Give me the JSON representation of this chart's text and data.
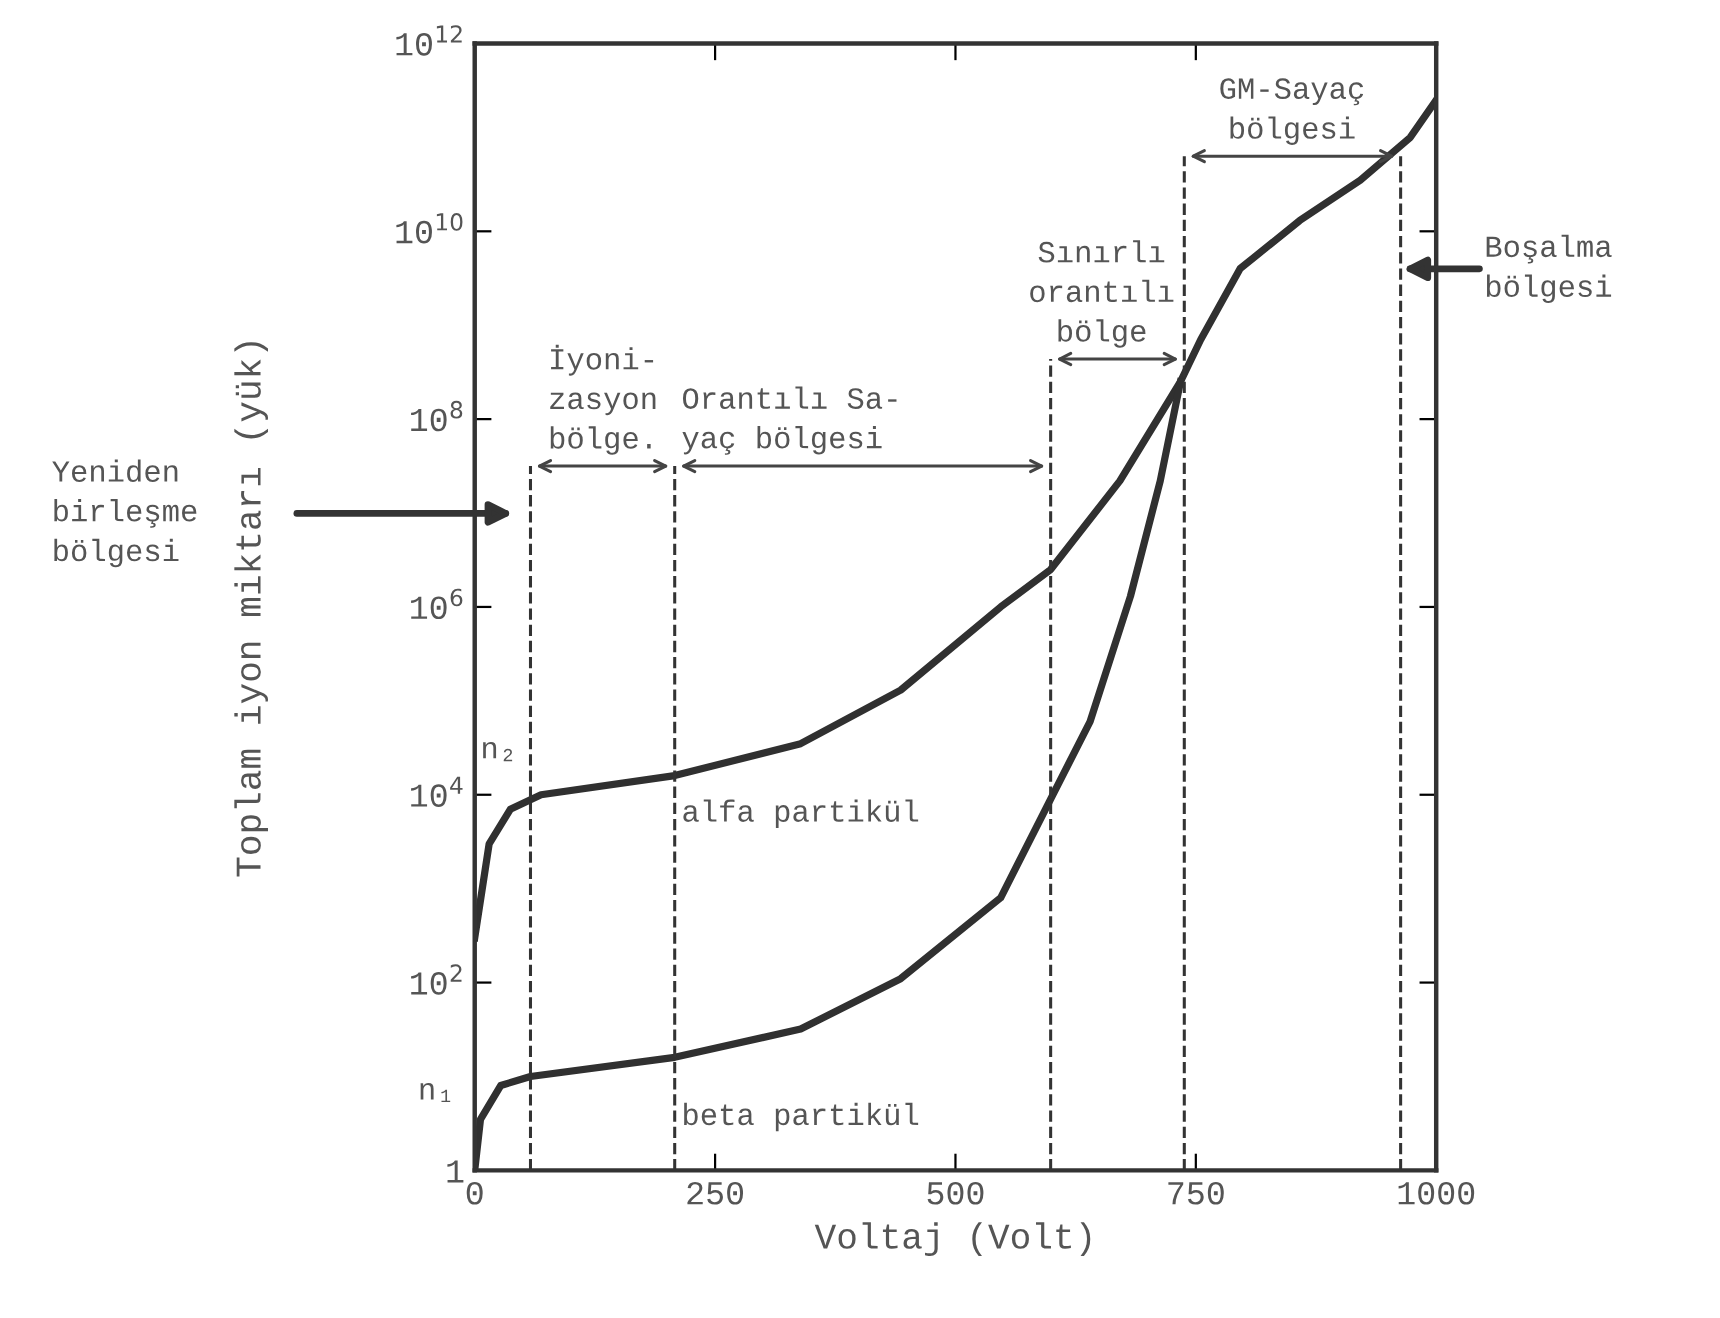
{
  "chart_data": {
    "type": "line",
    "xlabel": "Voltaj (Volt)",
    "ylabel": "Toplam iyon miktarı (yük)",
    "log": "y",
    "xlim": [
      0,
      1000
    ],
    "xticks": [
      0,
      250,
      500,
      750,
      1000
    ],
    "ylim": [
      1,
      1000000000000.0
    ],
    "yticks": [
      {
        "value": 1,
        "label": "1"
      },
      {
        "value": 100,
        "label": "10$^{2}$"
      },
      {
        "value": 10000,
        "label": "10$^{4}$"
      },
      {
        "value": 1000000,
        "label": "10$^{6}$"
      },
      {
        "value": 100000000,
        "label": "10$^{8}$"
      },
      {
        "value": 10000000000,
        "label": "10$^{10}$"
      },
      {
        "value": 1000000000000,
        "label": "10$^{12}$"
      }
    ],
    "grid": false,
    "marker": "none",
    "line_style": "solid",
    "series": [
      {
        "name": "alfa partikül",
        "color": "#303030",
        "x": [
          0,
          15,
          37,
          69,
          208,
          339,
          443,
          547,
          599,
          671,
          734,
          755,
          796,
          858,
          921,
          973,
          1000
        ],
        "values": [
          300,
          3000,
          7000,
          10000,
          16000,
          35000,
          130000,
          1000000,
          2500000,
          22000000,
          250000000,
          700000000,
          4000000000,
          13000000000,
          35000000000,
          100000000000,
          250000000000
        ]
      },
      {
        "name": "beta partikül",
        "color": "#303030",
        "x": [
          0,
          6,
          27,
          58,
          208,
          339,
          443,
          547,
          599,
          640,
          682,
          713,
          734
        ],
        "values": [
          1,
          3.5,
          8,
          10,
          16,
          32,
          110,
          800,
          9000,
          60000,
          1300000,
          22000000,
          250000000
        ]
      }
    ],
    "ref_lines": [
      {
        "axis": "x",
        "value": 58,
        "line_style": "dashed",
        "color": "#333333"
      },
      {
        "axis": "x",
        "value": 208,
        "line_style": "dashed",
        "color": "#333333"
      },
      {
        "axis": "x",
        "value": 599,
        "line_style": "dashed",
        "color": "#333333"
      },
      {
        "axis": "x",
        "value": 738,
        "line_style": "dashed",
        "color": "#333333"
      },
      {
        "axis": "x",
        "value": 963,
        "line_style": "dashed",
        "color": "#333333"
      }
    ],
    "annotations": [
      "Yeniden\nbirleşme\nbölgesi",
      "İyoni-\nzasyon\nbölge.",
      "Orantılı Sa-\nyaç bölgesi",
      "Sınırlı\norantılı\nbölge",
      "GM-Sayaç\nbölgesi",
      "Boşalma\nbölgesi",
      "n₂",
      "n₁"
    ]
  }
}
